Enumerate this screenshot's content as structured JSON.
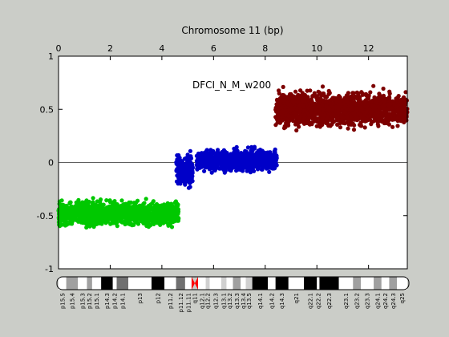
{
  "figure": {
    "background": "#cbcdc8",
    "plot_background": "#ffffff"
  },
  "chart_data": {
    "type": "scatter",
    "title": "Chromosome 11 (bp)",
    "annotation": "DFCI_N_M_w200",
    "xlim": [
      0,
      13.5
    ],
    "ylim": [
      -1,
      1
    ],
    "x_ticks": [
      0,
      2,
      4,
      6,
      8,
      10,
      12
    ],
    "y_ticks": [
      -1,
      -0.5,
      0,
      0.5,
      1
    ],
    "y_tick_labels": [
      "-1",
      "-0.5",
      "0",
      "0.5",
      "1"
    ],
    "x_axis_position": "top",
    "baseline_y": 0,
    "marker": "star",
    "series": [
      {
        "color": "#00c800",
        "segments": [
          {
            "x_start": 0.0,
            "x_end": 4.65,
            "y_center": -0.48,
            "y_spread": 0.09
          }
        ]
      },
      {
        "color": "#0000c8",
        "segments": [
          {
            "x_start": 4.55,
            "x_end": 5.2,
            "y_center": -0.07,
            "y_spread": 0.13
          },
          {
            "x_start": 5.35,
            "x_end": 8.45,
            "y_center": 0.02,
            "y_spread": 0.08
          }
        ]
      },
      {
        "color": "#7d0000",
        "segments": [
          {
            "x_start": 8.4,
            "x_end": 13.5,
            "y_center": 0.5,
            "y_spread": 0.13
          }
        ]
      }
    ]
  },
  "ideogram": {
    "bands": [
      {
        "name": "p15.5",
        "start": 0.0,
        "end": 0.3,
        "stain": "gneg"
      },
      {
        "name": "p15.4",
        "start": 0.3,
        "end": 0.75,
        "stain": "gpos50"
      },
      {
        "name": "p15.3",
        "start": 0.75,
        "end": 1.1,
        "stain": "gneg"
      },
      {
        "name": "p15.2",
        "start": 1.1,
        "end": 1.3,
        "stain": "gpos50"
      },
      {
        "name": "p15.1",
        "start": 1.3,
        "end": 1.65,
        "stain": "gneg"
      },
      {
        "name": "p14.3",
        "start": 1.65,
        "end": 2.1,
        "stain": "gpos100"
      },
      {
        "name": "p14.2",
        "start": 2.1,
        "end": 2.25,
        "stain": "gneg"
      },
      {
        "name": "p14.1",
        "start": 2.25,
        "end": 2.7,
        "stain": "gpos75"
      },
      {
        "name": "p13",
        "start": 2.7,
        "end": 3.6,
        "stain": "gneg"
      },
      {
        "name": "p12",
        "start": 3.6,
        "end": 4.1,
        "stain": "gpos100"
      },
      {
        "name": "p11.2",
        "start": 4.1,
        "end": 4.55,
        "stain": "gneg"
      },
      {
        "name": "p11.12",
        "start": 4.55,
        "end": 4.9,
        "stain": "gpos75"
      },
      {
        "name": "p11.11",
        "start": 4.9,
        "end": 5.15,
        "stain": "gneg"
      },
      {
        "name": "q11",
        "start": 5.15,
        "end": 5.4,
        "stain": "acen"
      },
      {
        "name": "q12.1",
        "start": 5.4,
        "end": 5.7,
        "stain": "gneg"
      },
      {
        "name": "q12.2",
        "start": 5.7,
        "end": 5.85,
        "stain": "gpos25"
      },
      {
        "name": "q12.3",
        "start": 5.85,
        "end": 6.3,
        "stain": "gneg"
      },
      {
        "name": "q13.1",
        "start": 6.3,
        "end": 6.5,
        "stain": "gpos25"
      },
      {
        "name": "q13.2",
        "start": 6.5,
        "end": 6.75,
        "stain": "gneg"
      },
      {
        "name": "q13.3",
        "start": 6.75,
        "end": 7.05,
        "stain": "gpos50"
      },
      {
        "name": "q13.4",
        "start": 7.05,
        "end": 7.25,
        "stain": "gneg"
      },
      {
        "name": "q13.5",
        "start": 7.25,
        "end": 7.5,
        "stain": "gpos25"
      },
      {
        "name": "q14.1",
        "start": 7.5,
        "end": 8.1,
        "stain": "gpos100"
      },
      {
        "name": "q14.2",
        "start": 8.1,
        "end": 8.4,
        "stain": "gneg"
      },
      {
        "name": "q14.3",
        "start": 8.4,
        "end": 8.9,
        "stain": "gpos100"
      },
      {
        "name": "q21",
        "start": 8.9,
        "end": 9.5,
        "stain": "gneg"
      },
      {
        "name": "q22.1",
        "start": 9.5,
        "end": 10.0,
        "stain": "gpos100"
      },
      {
        "name": "q22.2",
        "start": 10.0,
        "end": 10.1,
        "stain": "gneg"
      },
      {
        "name": "q22.3",
        "start": 10.1,
        "end": 10.85,
        "stain": "gpos100"
      },
      {
        "name": "q23.1",
        "start": 10.85,
        "end": 11.4,
        "stain": "gneg"
      },
      {
        "name": "q23.2",
        "start": 11.4,
        "end": 11.7,
        "stain": "gpos50"
      },
      {
        "name": "q23.3",
        "start": 11.7,
        "end": 12.2,
        "stain": "gneg"
      },
      {
        "name": "q24.1",
        "start": 12.2,
        "end": 12.5,
        "stain": "gpos50"
      },
      {
        "name": "q24.2",
        "start": 12.5,
        "end": 12.8,
        "stain": "gneg"
      },
      {
        "name": "q24.3",
        "start": 12.8,
        "end": 13.1,
        "stain": "gpos50"
      },
      {
        "name": "q25",
        "start": 13.1,
        "end": 13.5,
        "stain": "gneg"
      }
    ],
    "stain_colors": {
      "gneg": "#ffffff",
      "gpos25": "#d0d0d0",
      "gpos50": "#a0a0a0",
      "gpos75": "#707070",
      "gpos100": "#000000",
      "acen": "#ff0000"
    }
  }
}
